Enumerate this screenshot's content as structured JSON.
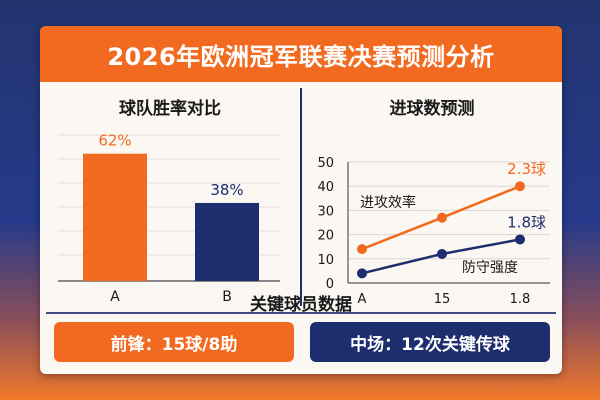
{
  "header": {
    "title": "2026年欧洲冠军联赛决赛预测分析"
  },
  "chart_data": [
    {
      "type": "bar",
      "title": "球队胜率对比",
      "categories": [
        "A",
        "B"
      ],
      "values": [
        62,
        38
      ],
      "value_labels": [
        "62%",
        "38%"
      ],
      "colors": [
        "#f26a1f",
        "#1e2d6e"
      ],
      "ylim": [
        0,
        75
      ]
    },
    {
      "type": "line",
      "title": "进球数预测",
      "x": [
        "A",
        "15",
        "1.8"
      ],
      "yticks": [
        0,
        10,
        20,
        30,
        40,
        50
      ],
      "ylim": [
        0,
        50
      ],
      "series": [
        {
          "name": "进攻效率",
          "values": [
            14,
            27,
            40
          ],
          "end_label": "2.3球",
          "color": "#f26a1f"
        },
        {
          "name": "防守强度",
          "values": [
            4,
            12,
            18
          ],
          "end_label": "1.8球",
          "color": "#1e2d6e"
        }
      ],
      "grid": true
    }
  ],
  "players": {
    "title": "关键球员数据",
    "forward": "前锋：15球/8助",
    "midfield": "中场：12次关键传球"
  }
}
